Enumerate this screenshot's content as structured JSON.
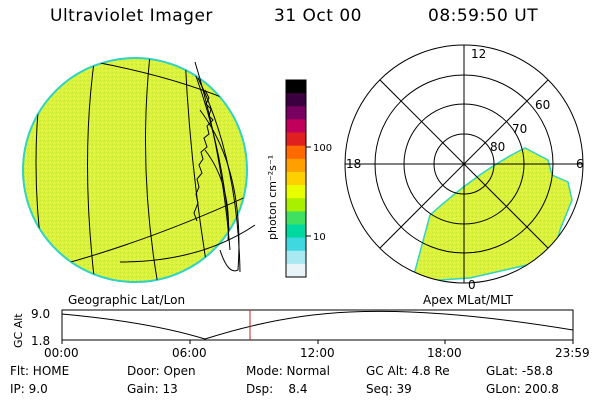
{
  "header": {
    "instrument": "Ultraviolet Imager",
    "date": "31 Oct 00",
    "time": "08:59:50 UT"
  },
  "colorbar": {
    "unit_label": "photon cm⁻²s⁻¹",
    "ticks": [
      "100",
      "10"
    ],
    "colors": [
      "#000000",
      "#3a0040",
      "#7a0060",
      "#c0005a",
      "#e02020",
      "#ff6a00",
      "#ffa000",
      "#ffd000",
      "#e8ff00",
      "#a8f000",
      "#40e060",
      "#00d8a0",
      "#40d8e0",
      "#a8e8f0",
      "#e8f4f8"
    ]
  },
  "left_panel": {
    "label": "Geographic Lat/Lon",
    "fill_color": "#ddf23a",
    "edge_color": "#2fd3c2"
  },
  "right_panel": {
    "label": "Apex MLat/MLT",
    "mlt_labels": {
      "top": "12",
      "left": "18",
      "right": "6",
      "bottom": "0"
    },
    "lat_labels": [
      "60",
      "70",
      "80"
    ],
    "fill_color": "#ddf23a"
  },
  "altitude_plot": {
    "ylabel": "GC Alt",
    "y_ticks": [
      "9.0",
      "1.8"
    ],
    "x_ticks": [
      "00:00",
      "06:00",
      "12:00",
      "18:00",
      "23:59"
    ],
    "marker_color": "#d02020"
  },
  "footer": {
    "flt": "Flt: HOME",
    "door": "Door: Open",
    "mode": "Mode: Normal",
    "gcalt": "GC Alt: 4.8 Re",
    "glat": "GLat: -58.8",
    "ip": "IP:  9.0",
    "gain": "Gain: 13",
    "dsp": "Dsp:    8.4",
    "seq": "Seq: 39",
    "glon": "GLon: 200.8"
  }
}
